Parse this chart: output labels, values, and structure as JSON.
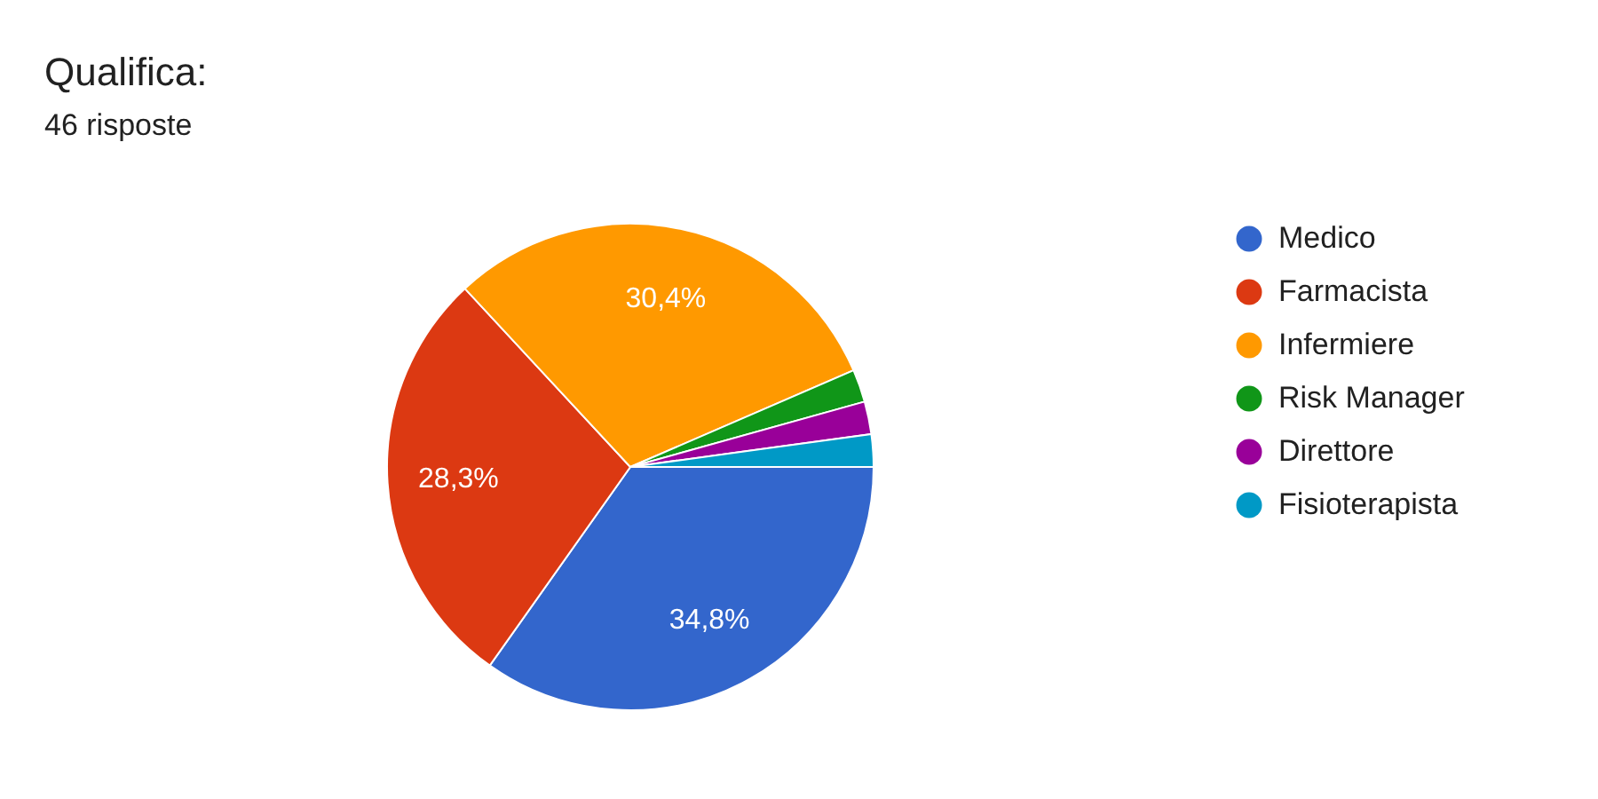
{
  "chart_data": {
    "type": "pie",
    "title": "Qualifica:",
    "subtitle": "46 risposte",
    "categories": [
      "Medico",
      "Farmacista",
      "Infermiere",
      "Risk Manager",
      "Direttore",
      "Fisioterapista"
    ],
    "values": [
      34.8,
      28.3,
      30.4,
      2.17,
      2.17,
      2.16
    ],
    "colors": [
      "#3366cc",
      "#dc3912",
      "#ff9900",
      "#109618",
      "#990099",
      "#0099c6"
    ],
    "value_labels": [
      "34,8%",
      "28,3%",
      "30,4%",
      null,
      null,
      null
    ],
    "legend": "right"
  }
}
